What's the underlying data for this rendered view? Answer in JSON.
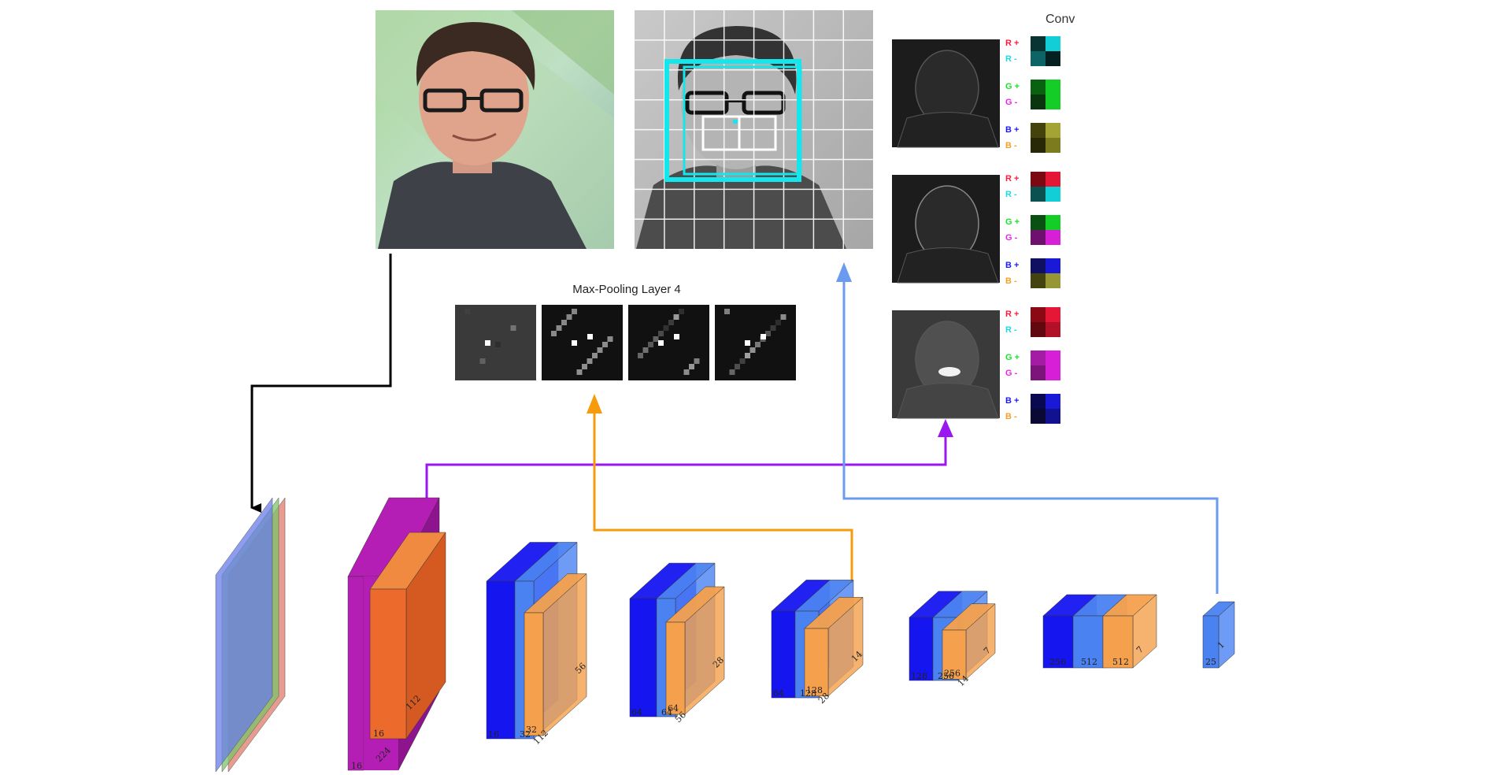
{
  "titles": {
    "maxpool": "Max-Pooling Layer 4",
    "conv": "Conv"
  },
  "channel_labels": [
    "R +",
    "R -",
    "G +",
    "G -",
    "B +",
    "B -"
  ],
  "colors": {
    "arrow_input": "#000000",
    "arrow_conv1": "#9a17f0",
    "arrow_pool4": "#f59b0c",
    "arrow_output": "#6a9bee",
    "conv_blue_dark": "#1515f0",
    "conv_blue_light": "#4a82f2",
    "pool_orange": "#f4a04c",
    "conv1_magenta": "#b51eb5",
    "conv1_orange": "#ec6a2c",
    "grid_cyan": "#14e6ee",
    "chan_R_plus": "#ff1a3c",
    "chan_R_minus": "#1ed8e6",
    "chan_G_plus": "#16e32a",
    "chan_G_minus": "#ee22ee",
    "chan_B_plus": "#1c1cee",
    "chan_B_minus": "#f2a02a"
  },
  "network": {
    "blocks": [
      {
        "id": "input",
        "labels": []
      },
      {
        "id": "conv1",
        "labels": [
          "16",
          "224",
          "112",
          "16"
        ]
      },
      {
        "id": "block2",
        "labels": [
          "16",
          "32",
          "112",
          "32",
          "56"
        ]
      },
      {
        "id": "block3",
        "labels": [
          "64",
          "64",
          "56",
          "64",
          "28"
        ]
      },
      {
        "id": "block4",
        "labels": [
          "64",
          "128",
          "28",
          "128",
          "14"
        ]
      },
      {
        "id": "block5",
        "labels": [
          "128",
          "256",
          "14",
          "256",
          "7"
        ]
      },
      {
        "id": "block6",
        "labels": [
          "256",
          "512",
          "512",
          "7"
        ]
      },
      {
        "id": "output",
        "labels": [
          "25",
          "1"
        ]
      }
    ]
  }
}
